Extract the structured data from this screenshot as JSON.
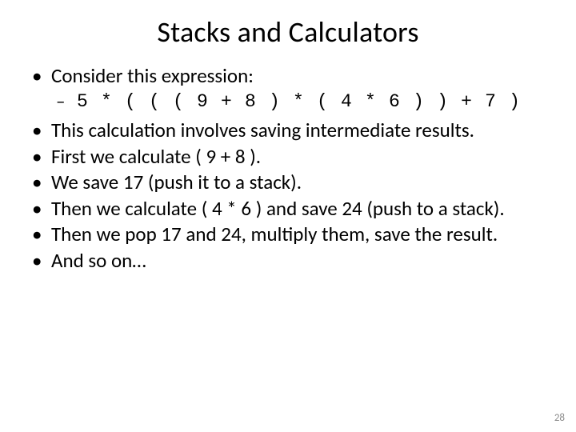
{
  "slide": {
    "title": "Stacks and Calculators",
    "bullets": {
      "b0": "Consider this expression:",
      "b0_sub": "5 * ( ( ( 9 + 8 ) *  ( 4 * 6 ) ) + 7 )",
      "b1": "This calculation involves saving intermediate results.",
      "b2": "First we calculate ( 9 + 8 ).",
      "b3": "We save 17 (push it to a stack).",
      "b4": "Then we calculate ( 4 * 6 ) and save 24 (push to a stack).",
      "b5": "Then we pop 17 and 24, multiply them, save the result.",
      "b6": "And so on…"
    },
    "page_number": "28"
  },
  "style": {
    "background_color": "#ffffff",
    "text_color": "#000000",
    "title_fontsize": 36,
    "body_fontsize": 25,
    "sub_fontsize": 23,
    "page_number_color": "#8a8a8a",
    "font_family": "Calibri",
    "mono_font_family": "Consolas"
  }
}
